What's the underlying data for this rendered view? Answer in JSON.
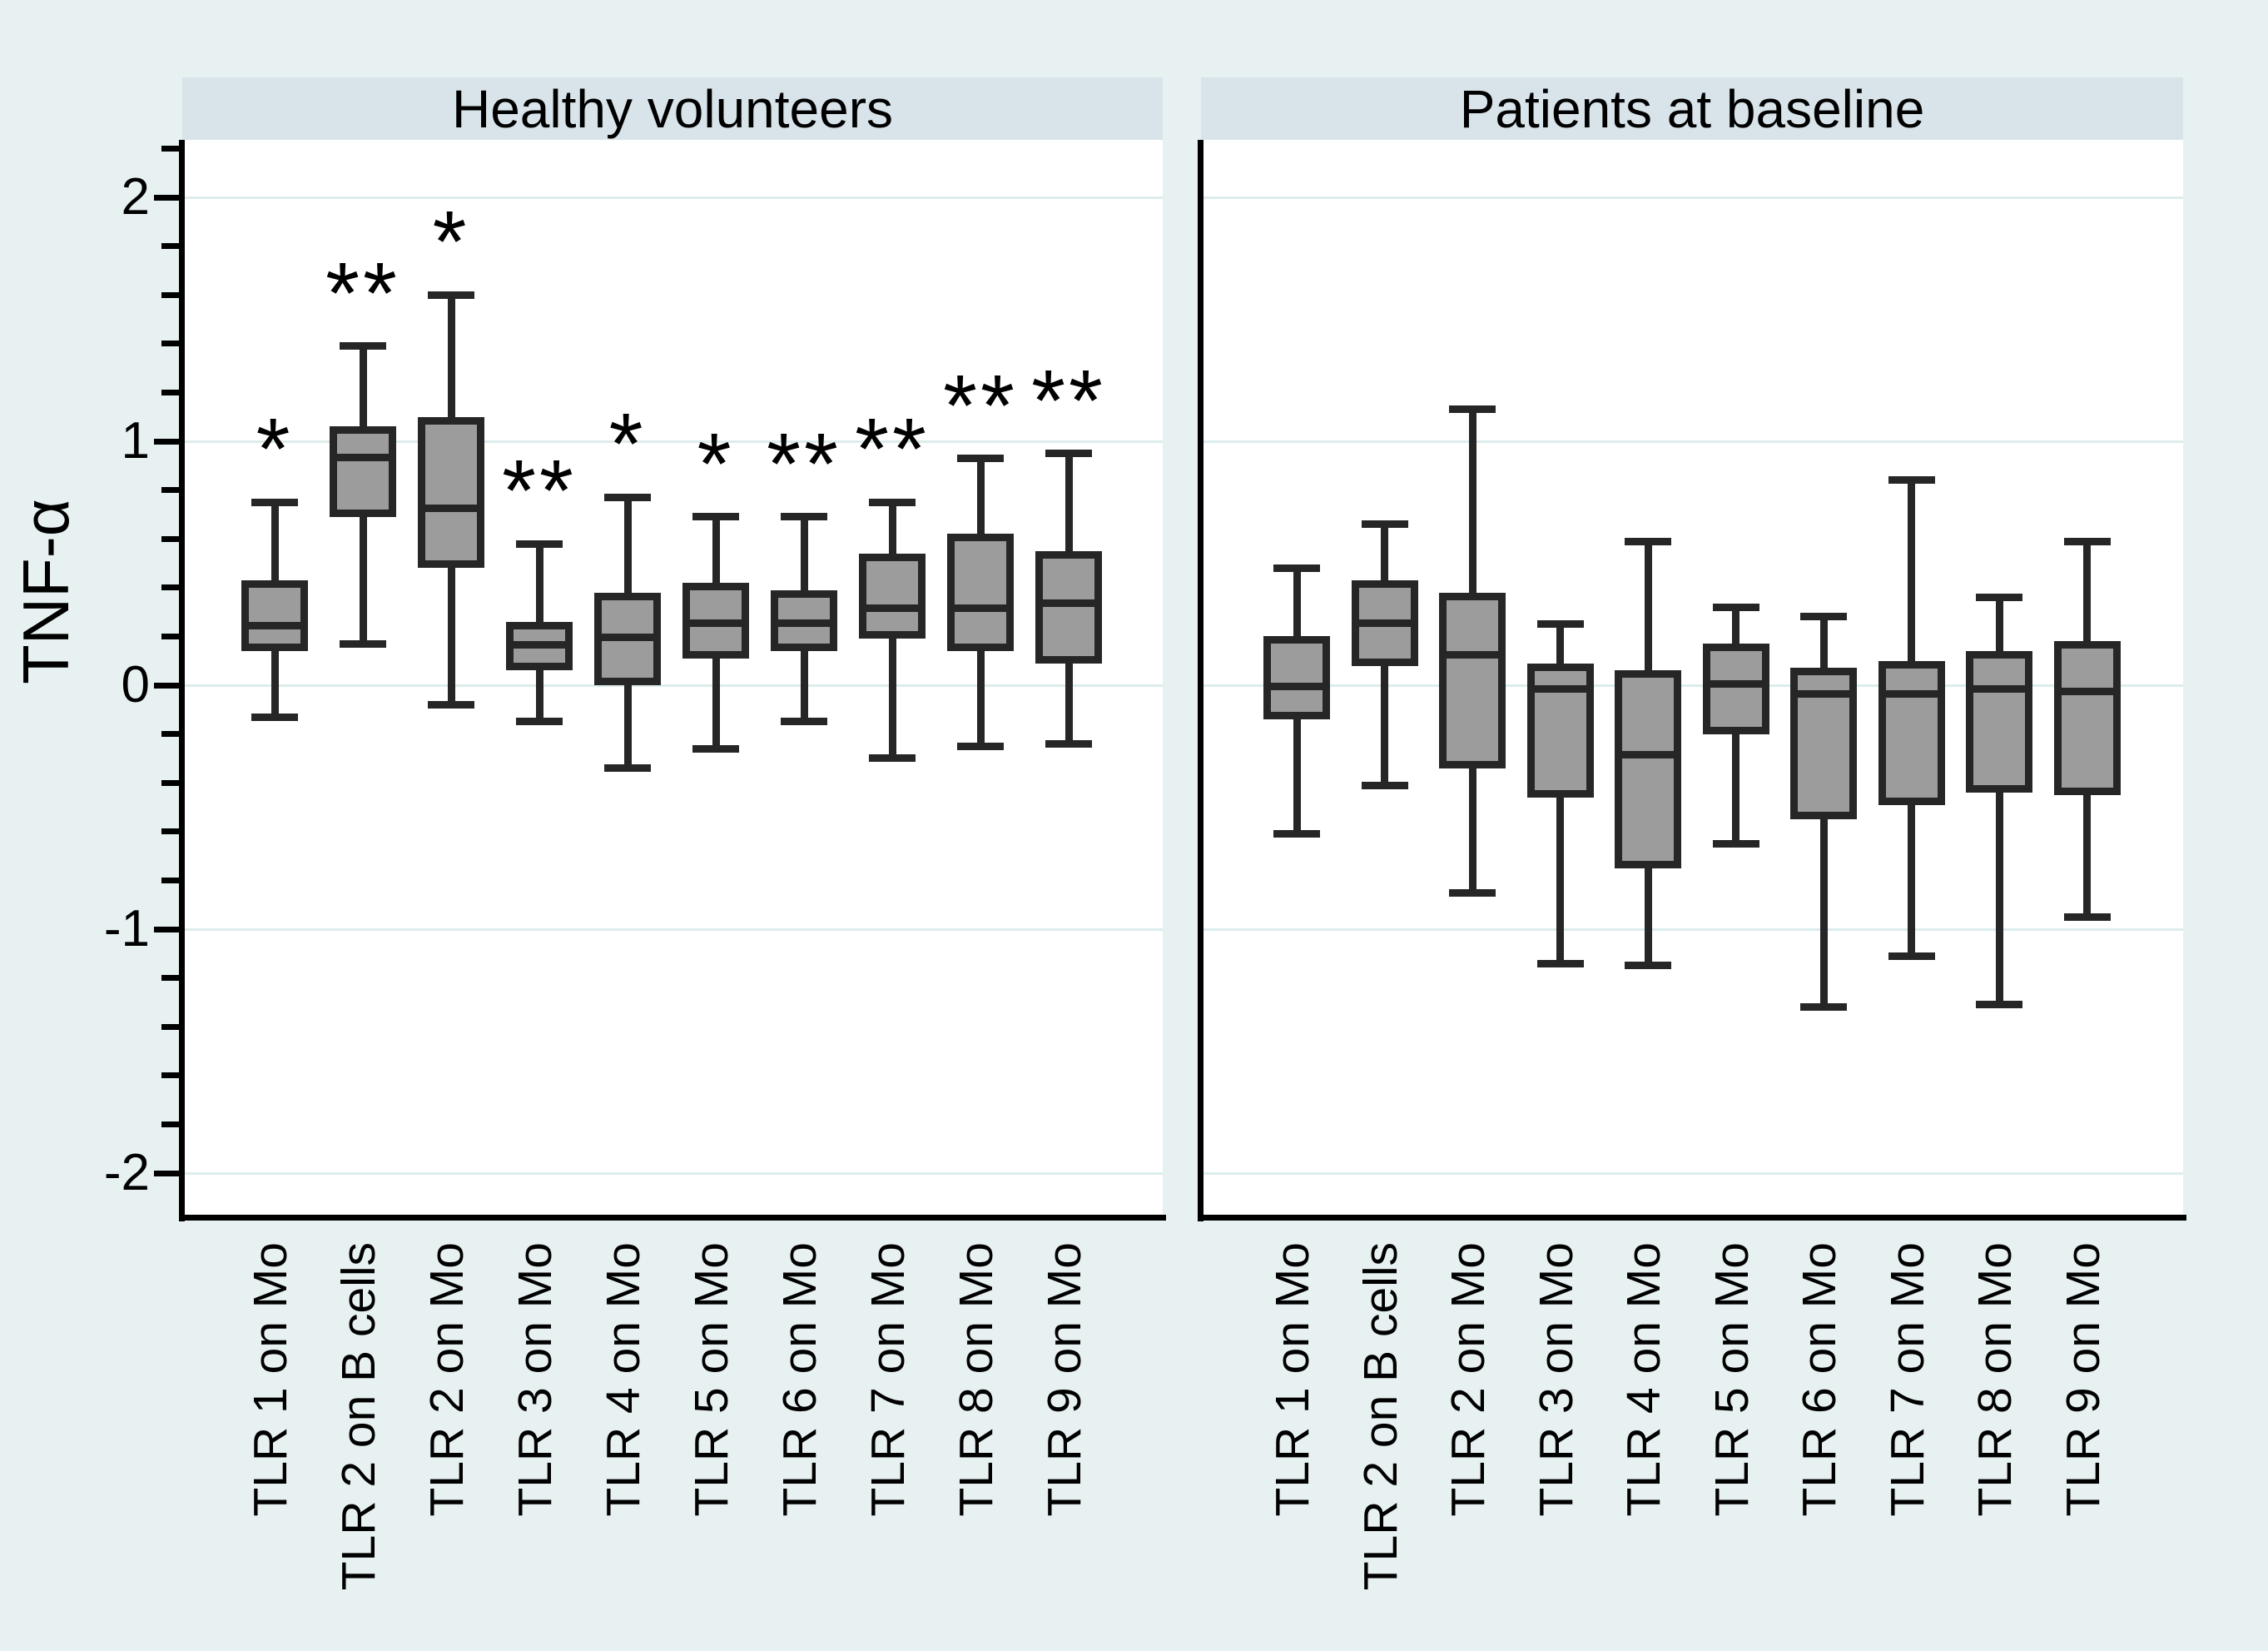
{
  "figure": {
    "y_axis_label": "TNF-α",
    "y_tick_labels": [
      "2",
      "1",
      "0",
      "-1",
      "-2"
    ],
    "y_tick_values": [
      2,
      1,
      0,
      -1,
      -2
    ],
    "colors": {
      "outer_background": "#e8f1f1",
      "panel_title_band": "#d8e4ea",
      "plot_background": "#ffffff",
      "gridline": "#ddecec",
      "box_fill": "#9c9c9c",
      "box_stroke": "#262626",
      "axis": "#000000"
    }
  },
  "chart_data": [
    {
      "type": "box",
      "title": "Healthy volunteers",
      "ylabel": "TNF-α",
      "ylim": [
        -2.2,
        2.24
      ],
      "y_major_ticks": [
        2,
        1,
        0,
        -1,
        -2
      ],
      "y_minor_tick_interval": 0.2,
      "grid": "horizontal-major",
      "categories": [
        "TLR 1 on Mo",
        "TLR 2 on B cells",
        "TLR 2 on Mo",
        "TLR 3 on Mo",
        "TLR 4 on Mo",
        "TLR 5 on Mo",
        "TLR 6 on Mo",
        "TLR 7 on Mo",
        "TLR 8 on Mo",
        "TLR 9 on Mo"
      ],
      "boxes": [
        {
          "whisker_low": -0.13,
          "q1": 0.14,
          "median": 0.26,
          "q3": 0.43,
          "whisker_high": 0.75,
          "significance": "*"
        },
        {
          "whisker_low": 0.17,
          "q1": 0.69,
          "median": 0.95,
          "q3": 1.06,
          "whisker_high": 1.39,
          "significance": "**"
        },
        {
          "whisker_low": -0.08,
          "q1": 0.48,
          "median": 0.74,
          "q3": 1.1,
          "whisker_high": 1.6,
          "significance": "*"
        },
        {
          "whisker_low": -0.15,
          "q1": 0.06,
          "median": 0.18,
          "q3": 0.26,
          "whisker_high": 0.58,
          "significance": "**"
        },
        {
          "whisker_low": -0.34,
          "q1": 0.0,
          "median": 0.21,
          "q3": 0.38,
          "whisker_high": 0.77,
          "significance": "*"
        },
        {
          "whisker_low": -0.26,
          "q1": 0.11,
          "median": 0.27,
          "q3": 0.42,
          "whisker_high": 0.69,
          "significance": "*"
        },
        {
          "whisker_low": -0.15,
          "q1": 0.14,
          "median": 0.27,
          "q3": 0.39,
          "whisker_high": 0.69,
          "significance": "**"
        },
        {
          "whisker_low": -0.3,
          "q1": 0.19,
          "median": 0.33,
          "q3": 0.54,
          "whisker_high": 0.75,
          "significance": "**"
        },
        {
          "whisker_low": -0.25,
          "q1": 0.14,
          "median": 0.33,
          "q3": 0.62,
          "whisker_high": 0.93,
          "significance": "**"
        },
        {
          "whisker_low": -0.24,
          "q1": 0.09,
          "median": 0.35,
          "q3": 0.55,
          "whisker_high": 0.95,
          "significance": "**"
        }
      ]
    },
    {
      "type": "box",
      "title": "Patients at baseline",
      "ylabel": "TNF-α",
      "ylim": [
        -2.2,
        2.24
      ],
      "y_major_ticks": [
        2,
        1,
        0,
        -1,
        -2
      ],
      "y_minor_tick_interval": 0.2,
      "grid": "horizontal-major",
      "categories": [
        "TLR 1 on Mo",
        "TLR 2 on B cells",
        "TLR 2 on Mo",
        "TLR 3 on Mo",
        "TLR 4 on Mo",
        "TLR 5 on Mo",
        "TLR 6 on Mo",
        "TLR 7 on Mo",
        "TLR 8 on Mo",
        "TLR 9 on Mo"
      ],
      "boxes": [
        {
          "whisker_low": -0.61,
          "q1": -0.14,
          "median": 0.01,
          "q3": 0.2,
          "whisker_high": 0.48,
          "significance": ""
        },
        {
          "whisker_low": -0.41,
          "q1": 0.08,
          "median": 0.27,
          "q3": 0.43,
          "whisker_high": 0.66,
          "significance": ""
        },
        {
          "whisker_low": -0.85,
          "q1": -0.34,
          "median": 0.14,
          "q3": 0.38,
          "whisker_high": 1.13,
          "significance": ""
        },
        {
          "whisker_low": -1.14,
          "q1": -0.46,
          "median": 0.0,
          "q3": 0.09,
          "whisker_high": 0.25,
          "significance": ""
        },
        {
          "whisker_low": -1.15,
          "q1": -0.75,
          "median": -0.27,
          "q3": 0.06,
          "whisker_high": 0.59,
          "significance": ""
        },
        {
          "whisker_low": -0.65,
          "q1": -0.2,
          "median": 0.02,
          "q3": 0.17,
          "whisker_high": 0.32,
          "significance": ""
        },
        {
          "whisker_low": -1.32,
          "q1": -0.55,
          "median": -0.02,
          "q3": 0.07,
          "whisker_high": 0.28,
          "significance": ""
        },
        {
          "whisker_low": -1.11,
          "q1": -0.49,
          "median": -0.02,
          "q3": 0.1,
          "whisker_high": 0.84,
          "significance": ""
        },
        {
          "whisker_low": -1.31,
          "q1": -0.44,
          "median": 0.0,
          "q3": 0.14,
          "whisker_high": 0.36,
          "significance": ""
        },
        {
          "whisker_low": -0.95,
          "q1": -0.45,
          "median": -0.01,
          "q3": 0.18,
          "whisker_high": 0.59,
          "significance": ""
        }
      ]
    }
  ]
}
